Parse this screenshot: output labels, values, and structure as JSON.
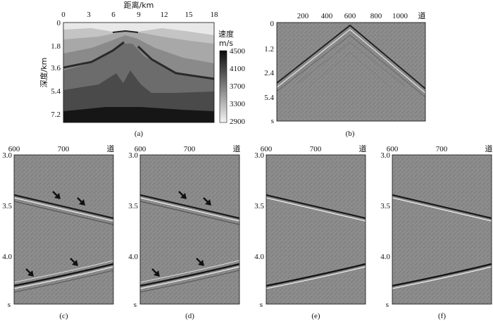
{
  "panel_a": {
    "x_title": "距离/km",
    "y_title": "深度/km",
    "x_ticks": [
      "0",
      "3",
      "6",
      "9",
      "12",
      "15",
      "18"
    ],
    "y_ticks": [
      "0",
      "1.8",
      "3.6",
      "5.4",
      "7.2"
    ],
    "colorbar_title_1": "速度",
    "colorbar_title_2": "m/s",
    "colorbar_ticks": [
      "4500",
      "4100",
      "3700",
      "3300",
      "2900"
    ],
    "caption": "(a)"
  },
  "panel_b": {
    "x_ticks": [
      "200",
      "400",
      "600",
      "800",
      "1000"
    ],
    "x_unit": "道",
    "y_ticks": [
      "0",
      "1.2",
      "2.4",
      "5.4"
    ],
    "y_unit": "s",
    "caption": "(b)"
  },
  "zoom_panels": [
    {
      "caption": "(c)",
      "x_ticks": [
        "600",
        "700"
      ],
      "x_unit": "道",
      "y_ticks": [
        "3.0",
        "3.5",
        "4.0"
      ],
      "y_unit": "s",
      "arrows": true
    },
    {
      "caption": "(d)",
      "x_ticks": [
        "600",
        "700"
      ],
      "x_unit": "道",
      "y_ticks": [
        "3.0",
        "3.5",
        "4.0"
      ],
      "y_unit": "s",
      "arrows": true
    },
    {
      "caption": "(e)",
      "x_ticks": [
        "600",
        "700"
      ],
      "x_unit": "道",
      "y_ticks": [
        "3.0",
        "3.5",
        "4.0"
      ],
      "y_unit": "s",
      "arrows": false
    },
    {
      "caption": "(f)",
      "x_ticks": [
        "600",
        "700"
      ],
      "x_unit": "道",
      "y_ticks": [
        "3.0",
        "3.5",
        "4.0"
      ],
      "y_unit": "s",
      "arrows": false
    }
  ],
  "colors": {
    "background": "#ffffff",
    "seismic_gray": "#8a8a8a",
    "text": "#111111"
  }
}
